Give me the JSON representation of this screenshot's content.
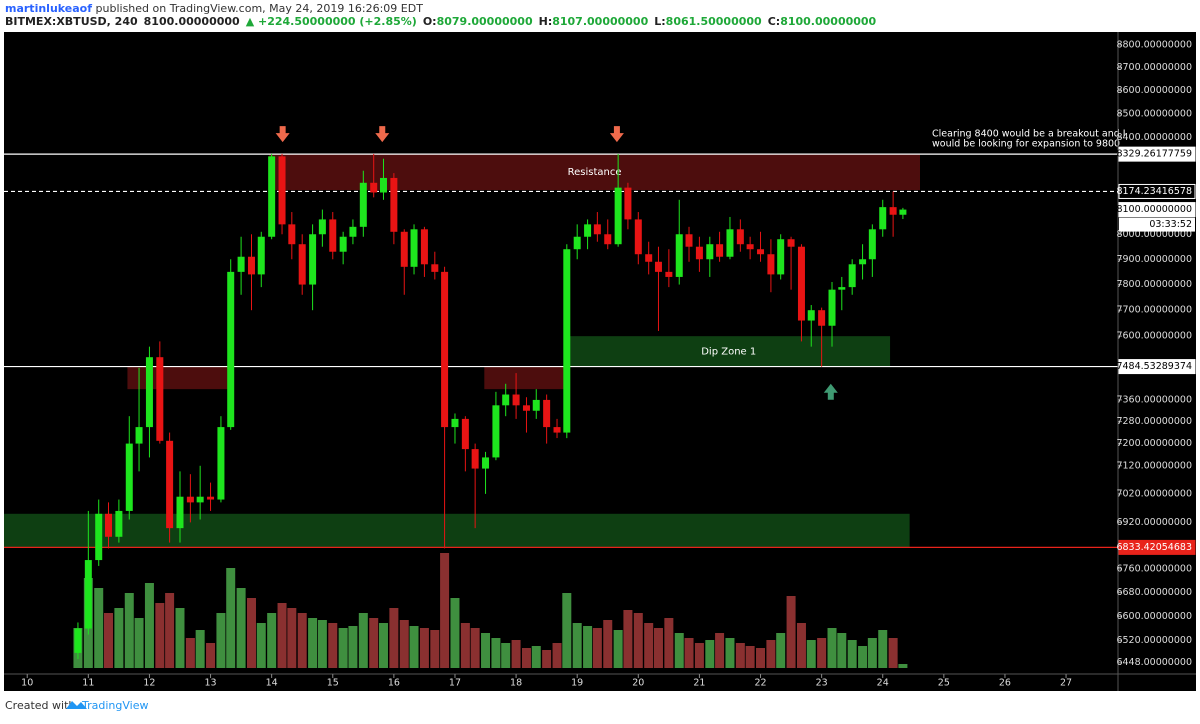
{
  "header": {
    "author": "martinlukeaof",
    "published": " published on TradingView.com, May 24, 2019 16:26:09 EDT",
    "symbol": "BITMEX:XBTUSD, 240",
    "price": "8100.00000000",
    "change": "▲ +224.50000000 (+2.85%)",
    "ohlc": [
      {
        "key": "O:",
        "value": "8079.00000000"
      },
      {
        "key": "H:",
        "value": "8107.00000000"
      },
      {
        "key": "L:",
        "value": "8061.50000000"
      },
      {
        "key": "C:",
        "value": "8100.00000000"
      }
    ]
  },
  "chart_data": {
    "type": "candlestick",
    "log": true,
    "xlim": [
      9.62,
      27.85
    ],
    "xticks": [
      10,
      11,
      12,
      13,
      14,
      15,
      16,
      17,
      18,
      19,
      20,
      21,
      22,
      23,
      24,
      25,
      26,
      27
    ],
    "ylim": [
      6418,
      8844
    ],
    "yticks": [
      {
        "value": 8800,
        "label": "8800.00000000"
      },
      {
        "value": 8700,
        "label": "8700.00000000"
      },
      {
        "value": 8600,
        "label": "8600.00000000"
      },
      {
        "value": 8500,
        "label": "8500.00000000"
      },
      {
        "value": 8400,
        "label": "8400.00000000"
      },
      {
        "value": 8000,
        "label": "8000.00000000"
      },
      {
        "value": 7900,
        "label": "7900.00000000"
      },
      {
        "value": 7800,
        "label": "7800.00000000"
      },
      {
        "value": 7700,
        "label": "7700.00000000"
      },
      {
        "value": 7600,
        "label": "7600.00000000"
      },
      {
        "value": 7360,
        "label": "7360.00000000"
      },
      {
        "value": 7280,
        "label": "7280.00000000"
      },
      {
        "value": 7200,
        "label": "7200.00000000"
      },
      {
        "value": 7120,
        "label": "7120.00000000"
      },
      {
        "value": 7020,
        "label": "7020.00000000"
      },
      {
        "value": 6920,
        "label": "6920.00000000"
      },
      {
        "value": 6760,
        "label": "6760.00000000"
      },
      {
        "value": 6680,
        "label": "6680.00000000"
      },
      {
        "value": 6600,
        "label": "6600.00000000"
      },
      {
        "value": 6520,
        "label": "6520.00000000"
      },
      {
        "value": 6448,
        "label": "6448.00000000"
      }
    ],
    "up_color": "#1ee51e",
    "down_color": "#e81414",
    "volume_up_color": "#3f8f3f",
    "volume_down_color": "#8a3030",
    "x": [
      10.83,
      11,
      11.17,
      11.33,
      11.5,
      11.67,
      11.83,
      12,
      12.17,
      12.33,
      12.5,
      12.67,
      12.83,
      13,
      13.17,
      13.33,
      13.5,
      13.67,
      13.83,
      14,
      14.17,
      14.33,
      14.5,
      14.67,
      14.83,
      15,
      15.17,
      15.33,
      15.5,
      15.67,
      15.83,
      16,
      16.17,
      16.33,
      16.5,
      16.67,
      16.83,
      17,
      17.17,
      17.33,
      17.5,
      17.67,
      17.83,
      18,
      18.17,
      18.33,
      18.5,
      18.67,
      18.83,
      19,
      19.17,
      19.33,
      19.5,
      19.67,
      19.83,
      20,
      20.17,
      20.33,
      20.5,
      20.67,
      20.83,
      21,
      21.17,
      21.33,
      21.5,
      21.67,
      21.83,
      22,
      22.17,
      22.33,
      22.5,
      22.67,
      22.83,
      23,
      23.17,
      23.33,
      23.5,
      23.67,
      23.83,
      24,
      24.17,
      24.33
    ],
    "candles": [
      [
        6480,
        6580,
        6460,
        6560
      ],
      [
        6560,
        6960,
        6540,
        6790
      ],
      [
        6790,
        7000,
        6770,
        6950
      ],
      [
        6950,
        6990,
        6830,
        6870
      ],
      [
        6870,
        7000,
        6850,
        6960
      ],
      [
        6960,
        7300,
        6930,
        7200
      ],
      [
        7200,
        7480,
        7100,
        7260
      ],
      [
        7260,
        7560,
        7150,
        7520
      ],
      [
        7520,
        7580,
        7200,
        7210
      ],
      [
        7210,
        7240,
        6850,
        6900
      ],
      [
        6900,
        7100,
        6850,
        7010
      ],
      [
        7010,
        7090,
        6920,
        6990
      ],
      [
        6990,
        7120,
        6930,
        7010
      ],
      [
        7010,
        7060,
        6960,
        7000
      ],
      [
        7000,
        7300,
        6990,
        7260
      ],
      [
        7260,
        7900,
        7250,
        7850
      ],
      [
        7850,
        7990,
        7760,
        7910
      ],
      [
        7910,
        8000,
        7700,
        7840
      ],
      [
        7840,
        8010,
        7790,
        7990
      ],
      [
        7990,
        8330,
        7980,
        8320
      ],
      [
        8320,
        8330,
        8000,
        8040
      ],
      [
        8040,
        8090,
        7900,
        7960
      ],
      [
        7960,
        8000,
        7760,
        7800
      ],
      [
        7800,
        8040,
        7700,
        8000
      ],
      [
        8000,
        8100,
        7950,
        8060
      ],
      [
        8060,
        8090,
        7900,
        7930
      ],
      [
        7930,
        8010,
        7880,
        7990
      ],
      [
        7990,
        8060,
        7960,
        8030
      ],
      [
        8030,
        8260,
        7990,
        8210
      ],
      [
        8210,
        8330,
        8150,
        8170
      ],
      [
        8170,
        8310,
        8140,
        8230
      ],
      [
        8230,
        8250,
        7960,
        8010
      ],
      [
        8010,
        8020,
        7760,
        7870
      ],
      [
        7870,
        8040,
        7840,
        8020
      ],
      [
        8020,
        8030,
        7830,
        7880
      ],
      [
        7880,
        7930,
        7820,
        7850
      ],
      [
        7850,
        7870,
        6830,
        7260
      ],
      [
        7260,
        7310,
        7200,
        7290
      ],
      [
        7290,
        7300,
        7100,
        7180
      ],
      [
        7180,
        7200,
        6900,
        7110
      ],
      [
        7110,
        7170,
        7020,
        7150
      ],
      [
        7150,
        7390,
        7140,
        7340
      ],
      [
        7340,
        7420,
        7300,
        7380
      ],
      [
        7380,
        7460,
        7290,
        7340
      ],
      [
        7340,
        7370,
        7240,
        7320
      ],
      [
        7320,
        7400,
        7290,
        7360
      ],
      [
        7360,
        7380,
        7200,
        7260
      ],
      [
        7260,
        7290,
        7220,
        7240
      ],
      [
        7240,
        7960,
        7220,
        7940
      ],
      [
        7940,
        8040,
        7900,
        7990
      ],
      [
        7990,
        8060,
        7940,
        8040
      ],
      [
        8040,
        8090,
        7970,
        8000
      ],
      [
        8000,
        8060,
        7940,
        7960
      ],
      [
        7960,
        8330,
        7950,
        8190
      ],
      [
        8190,
        8210,
        8020,
        8060
      ],
      [
        8060,
        8090,
        7880,
        7920
      ],
      [
        7920,
        7970,
        7840,
        7890
      ],
      [
        7890,
        7950,
        7620,
        7850
      ],
      [
        7850,
        7940,
        7790,
        7830
      ],
      [
        7830,
        8140,
        7800,
        8000
      ],
      [
        8000,
        8030,
        7890,
        7950
      ],
      [
        7950,
        7990,
        7850,
        7900
      ],
      [
        7900,
        7990,
        7830,
        7960
      ],
      [
        7960,
        8010,
        7890,
        7910
      ],
      [
        7910,
        8070,
        7900,
        8020
      ],
      [
        8020,
        8060,
        7930,
        7960
      ],
      [
        7960,
        7990,
        7900,
        7940
      ],
      [
        7940,
        8010,
        7890,
        7920
      ],
      [
        7920,
        7980,
        7770,
        7840
      ],
      [
        7840,
        8000,
        7820,
        7980
      ],
      [
        7980,
        7990,
        7780,
        7950
      ],
      [
        7950,
        7960,
        7580,
        7660
      ],
      [
        7660,
        7720,
        7560,
        7700
      ],
      [
        7700,
        7710,
        7484,
        7640
      ],
      [
        7640,
        7810,
        7560,
        7780
      ],
      [
        7780,
        7830,
        7700,
        7790
      ],
      [
        7790,
        7900,
        7760,
        7880
      ],
      [
        7880,
        7960,
        7820,
        7900
      ],
      [
        7900,
        8040,
        7830,
        8020
      ],
      [
        8020,
        8140,
        7990,
        8110
      ],
      [
        8110,
        8174,
        7990,
        8079
      ],
      [
        8079,
        8107,
        8061.5,
        8100
      ]
    ],
    "volume": [
      40,
      90,
      80,
      55,
      60,
      75,
      50,
      85,
      65,
      75,
      60,
      30,
      38,
      25,
      55,
      100,
      80,
      70,
      45,
      55,
      65,
      60,
      55,
      50,
      48,
      45,
      40,
      42,
      55,
      50,
      45,
      60,
      48,
      42,
      40,
      38,
      115,
      70,
      45,
      40,
      35,
      30,
      25,
      28,
      20,
      22,
      18,
      25,
      75,
      45,
      42,
      40,
      48,
      38,
      58,
      55,
      45,
      40,
      50,
      35,
      30,
      25,
      28,
      35,
      30,
      25,
      22,
      20,
      28,
      35,
      72,
      45,
      28,
      30,
      40,
      35,
      28,
      22,
      30,
      38,
      30,
      4
    ],
    "zones": [
      {
        "x": [
          13.96,
          24.61
        ],
        "y": [
          8180,
          8330
        ],
        "color": "#4d0d0d",
        "label": "Resistance"
      },
      {
        "x": [
          18.84,
          24.12
        ],
        "y": [
          7484,
          7600
        ],
        "color": "#0e3f12",
        "label": "Dip Zone 1"
      },
      {
        "x": [
          11.64,
          13.31
        ],
        "y": [
          7400,
          7484
        ],
        "color": "#4d0d0d"
      },
      {
        "x": [
          17.48,
          18.79
        ],
        "y": [
          7400,
          7484
        ],
        "color": "#4d0d0d"
      },
      {
        "x": [
          9.62,
          24.44
        ],
        "y": [
          6833,
          6950
        ],
        "color": "#0e3f12"
      }
    ],
    "price_lines": [
      {
        "value": 8329.26177759,
        "label": "8329.26177759",
        "color": "#ffffff",
        "style": "solid"
      },
      {
        "value": 8174.23416578,
        "label": "8174.23416578",
        "color": "#ffffff",
        "style": "dashed"
      },
      {
        "value": 7484.53289374,
        "label": "7484.53289374",
        "color": "#ffffff",
        "style": "solid"
      },
      {
        "value": 6833.42054683,
        "label": "6833.42054683",
        "color": "#e8231b",
        "style": "solid"
      }
    ],
    "last_price": {
      "value": 8100,
      "label": "8100.00000000"
    },
    "countdown": "03:33:52",
    "markers": [
      {
        "x": 14.18,
        "y": 8380,
        "dir": "down",
        "color": "#ef6a4c"
      },
      {
        "x": 15.81,
        "y": 8380,
        "dir": "down",
        "color": "#ef6a4c"
      },
      {
        "x": 19.65,
        "y": 8380,
        "dir": "down",
        "color": "#ef6a4c"
      },
      {
        "x": 23.15,
        "y": 7420,
        "dir": "up",
        "color": "#3f9a72"
      }
    ],
    "annotation": [
      "Clearing 8400 would be a breakout and I",
      "would be looking for expansion to 9800"
    ]
  },
  "footer": {
    "created": "Created with",
    "brand": "TradingView"
  }
}
